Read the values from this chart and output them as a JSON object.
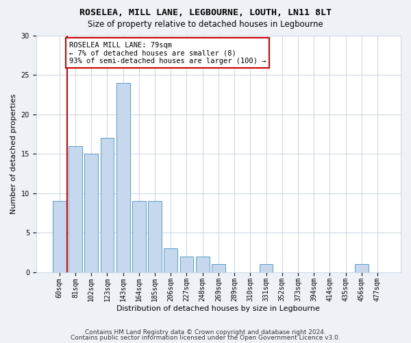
{
  "title": "ROSELEA, MILL LANE, LEGBOURNE, LOUTH, LN11 8LT",
  "subtitle": "Size of property relative to detached houses in Legbourne",
  "xlabel": "Distribution of detached houses by size in Legbourne",
  "ylabel": "Number of detached properties",
  "categories": [
    "60sqm",
    "81sqm",
    "102sqm",
    "123sqm",
    "143sqm",
    "164sqm",
    "185sqm",
    "206sqm",
    "227sqm",
    "248sqm",
    "269sqm",
    "289sqm",
    "310sqm",
    "331sqm",
    "352sqm",
    "373sqm",
    "394sqm",
    "414sqm",
    "435sqm",
    "456sqm",
    "477sqm"
  ],
  "values": [
    9,
    16,
    15,
    17,
    24,
    9,
    9,
    3,
    2,
    2,
    1,
    0,
    0,
    1,
    0,
    0,
    0,
    0,
    0,
    1,
    0
  ],
  "bar_color": "#c5d8ed",
  "bar_edge_color": "#5a9bc8",
  "highlight_bar_idx": 1,
  "highlight_color": "#cc0000",
  "annotation_text": "ROSELEA MILL LANE: 79sqm\n← 7% of detached houses are smaller (8)\n93% of semi-detached houses are larger (100) →",
  "annotation_box_color": "#ffffff",
  "annotation_box_edge": "#cc0000",
  "ylim": [
    0,
    30
  ],
  "yticks": [
    0,
    5,
    10,
    15,
    20,
    25,
    30
  ],
  "footer1": "Contains HM Land Registry data © Crown copyright and database right 2024.",
  "footer2": "Contains public sector information licensed under the Open Government Licence v3.0.",
  "bg_color": "#eef2f7",
  "plot_bg_color": "#ffffff",
  "grid_color": "#c8d4e0",
  "title_fontsize": 9.5,
  "subtitle_fontsize": 8.5,
  "axis_label_fontsize": 8,
  "tick_fontsize": 7,
  "annotation_fontsize": 7.5,
  "footer_fontsize": 6.5
}
